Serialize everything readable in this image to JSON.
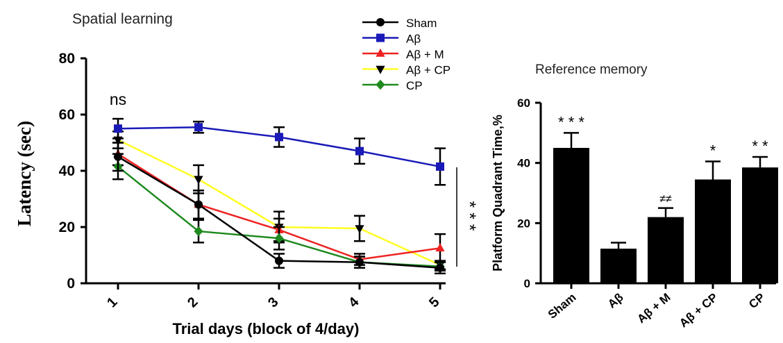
{
  "chart_data": [
    {
      "type": "line",
      "title": "Spatial learning",
      "xlabel": "Trial days (block of 4/day)",
      "ylabel": "Latency (sec)",
      "x": [
        1,
        2,
        3,
        4,
        5
      ],
      "xticks": [
        "1",
        "2",
        "3",
        "4",
        "5"
      ],
      "yticks": [
        "0",
        "20",
        "40",
        "60",
        "80"
      ],
      "ylim": [
        0,
        80
      ],
      "grid": false,
      "legend_position": "top-center",
      "series": [
        {
          "name": "Sham",
          "color": "#000000",
          "marker": "circle",
          "values": [
            45,
            28,
            8,
            7.5,
            5.5
          ],
          "err": [
            5,
            5,
            2.5,
            2,
            2
          ]
        },
        {
          "name": "Aβ",
          "color": "#1a1ab8",
          "marker": "square",
          "values": [
            55,
            55.5,
            52,
            47,
            41.5
          ],
          "err": [
            3.5,
            2,
            3.5,
            4.5,
            6.5
          ]
        },
        {
          "name": "Aβ + M",
          "color": "#ee2222",
          "marker": "triangle-up",
          "values": [
            46,
            28,
            19,
            8.5,
            12.5
          ],
          "err": [
            4,
            5,
            4,
            2,
            5
          ]
        },
        {
          "name": "Aβ + CP",
          "color": "#ffff22",
          "marker": "triangle-down",
          "values": [
            51,
            37,
            20,
            19.5,
            6.5
          ],
          "err": [
            3,
            5,
            5.5,
            4.5,
            1.5
          ]
        },
        {
          "name": "CP",
          "color": "#1f8a1f",
          "marker": "diamond",
          "values": [
            41.5,
            18.5,
            16,
            7.5,
            6
          ],
          "err": [
            4.5,
            4,
            4,
            2,
            1.5
          ]
        }
      ],
      "annotations": [
        {
          "text": "ns",
          "at_x": 1
        },
        {
          "text": "* * *",
          "at_x": 5,
          "orientation": "vertical"
        }
      ]
    },
    {
      "type": "bar",
      "title": "Reference memory",
      "xlabel": "",
      "ylabel": "Platform Quadrant Time,%",
      "categories": [
        "Sham",
        "Aβ",
        "Aβ + M",
        "Aβ + CP",
        "CP"
      ],
      "values": [
        45,
        11.5,
        22,
        34.5,
        38.5
      ],
      "err": [
        5,
        2,
        3,
        6,
        3.5
      ],
      "significance": [
        "* * *",
        "",
        "≠≠",
        "*",
        "* *"
      ],
      "yticks": [
        "0",
        "20",
        "40",
        "60"
      ],
      "ylim": [
        0,
        60
      ],
      "bar_color": "#000000",
      "grid": false
    }
  ]
}
